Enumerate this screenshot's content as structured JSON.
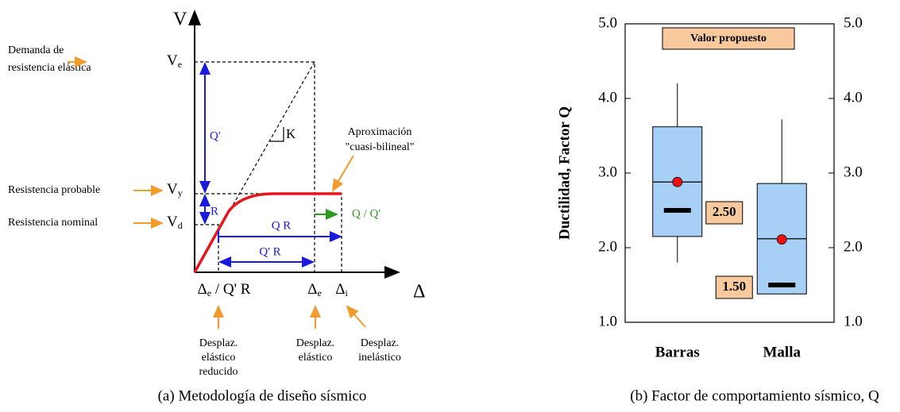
{
  "diagram": {
    "caption": "(a) Metodología de diseño sísmico",
    "axes": {
      "v": "V",
      "delta": "Δ"
    },
    "levels": [
      {
        "note": [
          "Demanda de",
          "resistencia elástica"
        ],
        "symbol": "V",
        "sub": "e"
      },
      {
        "note": [
          "Resistencia probable"
        ],
        "symbol": "V",
        "sub": "y"
      },
      {
        "note": [
          "Resistencia nominal"
        ],
        "symbol": "V",
        "sub": "d"
      }
    ],
    "segments": {
      "q_prime": "Q'",
      "r": "R",
      "qr": "Q R",
      "q_prime_r": "Q' R",
      "ratio": "Q / Q'",
      "stiffness": "K"
    },
    "curve_note": [
      "Aproximación",
      "\"cuasi-bilineal\""
    ],
    "displacements": [
      {
        "symbol": "Δ",
        "sub": "e",
        "suffix": " / Q' R",
        "note": [
          "Desplaz.",
          "elástico",
          "reducido"
        ]
      },
      {
        "symbol": "Δ",
        "sub": "e",
        "note": [
          "Desplaz.",
          "elástico"
        ]
      },
      {
        "symbol": "Δ",
        "sub": "i",
        "note": [
          "Desplaz.",
          "inelástico"
        ]
      }
    ]
  },
  "chart_data": {
    "type": "box",
    "caption": "(b) Factor de comportamiento sísmico, Q",
    "y_label": "Ductilidad,  Factor Q",
    "annotation": "Valor propuesto",
    "categories": [
      "Barras",
      "Malla"
    ],
    "boxes": [
      {
        "whislo": 1.8,
        "q1": 2.15,
        "med": 2.88,
        "q3": 3.62,
        "whishi": 4.2
      },
      {
        "whislo": 1.38,
        "q1": 1.38,
        "med": 2.12,
        "q3": 2.86,
        "whishi": 3.72
      }
    ],
    "box_color": "#a8cff5",
    "means": [
      2.88,
      2.11
    ],
    "mean_color": "#ee1111",
    "proposed": {
      "values": [
        2.5,
        1.5
      ],
      "value_labels": [
        "2.50",
        "1.50"
      ],
      "color": "#000000",
      "label_fill": "#f9c99e"
    },
    "ylim": [
      1,
      5
    ],
    "yticks": [
      {
        "value": 1,
        "label": "1.0"
      },
      {
        "value": 2,
        "label": "2.0"
      },
      {
        "value": 3,
        "label": "3.0"
      },
      {
        "value": 4,
        "label": "4.0"
      },
      {
        "value": 5,
        "label": "5.0"
      }
    ],
    "y2lim": [
      1,
      5
    ],
    "y2ticks": [
      {
        "value": 1,
        "label": "1.0"
      },
      {
        "value": 2,
        "label": "2.0"
      },
      {
        "value": 3,
        "label": "3.0"
      },
      {
        "value": 4,
        "label": "4.0"
      },
      {
        "value": 5,
        "label": "5.0"
      }
    ]
  }
}
